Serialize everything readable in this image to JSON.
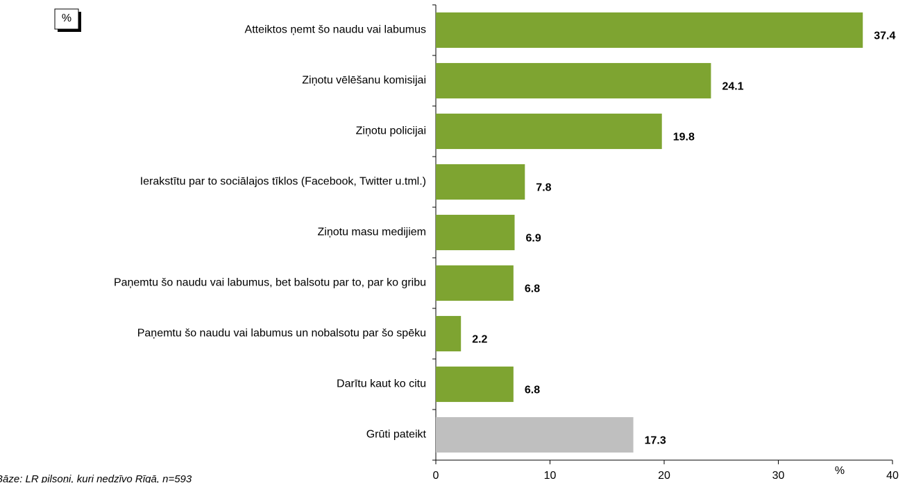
{
  "chart_data": {
    "type": "bar",
    "orientation": "horizontal",
    "unit_box": "%",
    "axis_unit_label": "%",
    "footnote": "Bāze: LR pilsoņi, kuri nedzīvo Rīgā, n=593",
    "categories": [
      "Atteiktos ņemt šo naudu vai labumus",
      "Ziņotu vēlēšanu komisijai",
      "Ziņotu policijai",
      "Ierakstītu par to sociālajos tīklos (Facebook, Twitter u.tml.)",
      "Ziņotu masu medijiem",
      "Paņemtu šo naudu vai labumus, bet balsotu par to, par ko gribu",
      "Paņemtu šo naudu vai labumus un nobalsotu par šo spēku",
      "Darītu kaut ko citu",
      "Grūti pateikt"
    ],
    "values": [
      37.4,
      24.1,
      19.8,
      7.8,
      6.9,
      6.8,
      2.2,
      6.8,
      17.3
    ],
    "colors": [
      "#7ea431",
      "#7ea431",
      "#7ea431",
      "#7ea431",
      "#7ea431",
      "#7ea431",
      "#7ea431",
      "#7ea431",
      "#bfbfbf"
    ],
    "xlim": [
      0,
      40
    ],
    "xticks": [
      0,
      10,
      20,
      30,
      40
    ],
    "grid": false
  }
}
